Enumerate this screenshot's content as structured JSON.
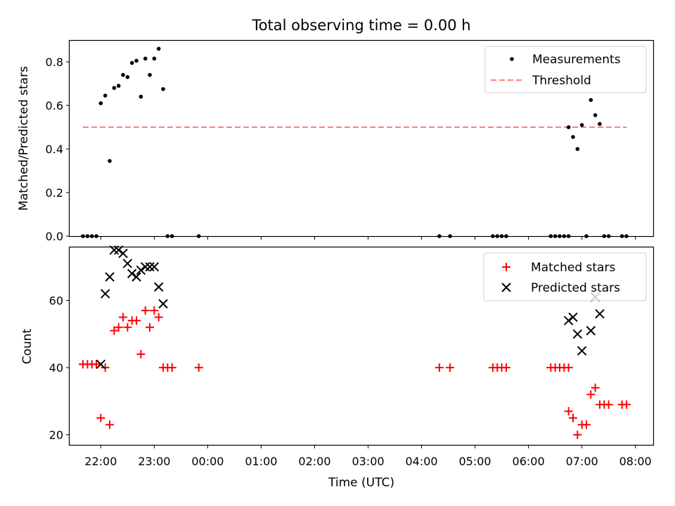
{
  "figure": {
    "title": "Total observing time = 0.00 h",
    "xlabel": "Time (UTC)",
    "x_tick_labels": [
      "22:00",
      "23:00",
      "00:00",
      "01:00",
      "02:00",
      "03:00",
      "04:00",
      "05:00",
      "06:00",
      "07:00",
      "08:00"
    ]
  },
  "colors": {
    "measurements": "#000000",
    "threshold": "#ff8080",
    "matched": "#ff0000",
    "predicted": "#000000"
  },
  "chart_data": [
    {
      "type": "scatter",
      "panel": "top",
      "ylabel": "Matched/Predicted stars",
      "xlim": [
        "21:25",
        "08:20"
      ],
      "ylim": [
        0,
        0.9
      ],
      "y_ticks": [
        0.0,
        0.2,
        0.4,
        0.6,
        0.8
      ],
      "y_tick_labels": [
        "0.0",
        "0.2",
        "0.4",
        "0.6",
        "0.8"
      ],
      "legend_position": "top-right",
      "series": [
        {
          "name": "Measurements",
          "marker": "dot",
          "points": [
            [
              "21:40",
              0
            ],
            [
              "21:45",
              0
            ],
            [
              "21:50",
              0
            ],
            [
              "21:55",
              0
            ],
            [
              "22:00",
              0.61
            ],
            [
              "22:05",
              0.645
            ],
            [
              "22:10",
              0.345
            ],
            [
              "22:15",
              0.68
            ],
            [
              "22:20",
              0.69
            ],
            [
              "22:25",
              0.74
            ],
            [
              "22:30",
              0.73
            ],
            [
              "22:35",
              0.795
            ],
            [
              "22:40",
              0.805
            ],
            [
              "22:45",
              0.64
            ],
            [
              "22:50",
              0.815
            ],
            [
              "22:55",
              0.74
            ],
            [
              "23:00",
              0.815
            ],
            [
              "23:05",
              0.86
            ],
            [
              "23:10",
              0.675
            ],
            [
              "23:15",
              0
            ],
            [
              "23:20",
              0
            ],
            [
              "23:50",
              0
            ],
            [
              "04:20",
              0
            ],
            [
              "04:32",
              0
            ],
            [
              "05:20",
              0
            ],
            [
              "05:25",
              0
            ],
            [
              "05:30",
              0
            ],
            [
              "05:35",
              0
            ],
            [
              "06:25",
              0
            ],
            [
              "06:30",
              0
            ],
            [
              "06:35",
              0
            ],
            [
              "06:40",
              0
            ],
            [
              "06:45",
              0
            ],
            [
              "06:45",
              0.5
            ],
            [
              "06:50",
              0.455
            ],
            [
              "06:55",
              0.4
            ],
            [
              "07:00",
              0.51
            ],
            [
              "07:05",
              0
            ],
            [
              "07:10",
              0.625
            ],
            [
              "07:15",
              0.555
            ],
            [
              "07:20",
              0.515
            ],
            [
              "07:25",
              0
            ],
            [
              "07:30",
              0
            ],
            [
              "07:45",
              0
            ],
            [
              "07:50",
              0
            ]
          ]
        },
        {
          "name": "Threshold",
          "style": "dashed-line",
          "points": [
            [
              "21:40",
              0.5
            ],
            [
              "07:50",
              0.5
            ]
          ]
        }
      ]
    },
    {
      "type": "scatter",
      "panel": "bottom",
      "ylabel": "Count",
      "xlim": [
        "21:25",
        "08:20"
      ],
      "ylim": [
        17,
        76
      ],
      "y_ticks": [
        20,
        40,
        60
      ],
      "y_tick_labels": [
        "20",
        "40",
        "60"
      ],
      "legend_position": "top-right",
      "series": [
        {
          "name": "Matched stars",
          "marker": "plus",
          "points": [
            [
              "21:40",
              41
            ],
            [
              "21:45",
              41
            ],
            [
              "21:50",
              41
            ],
            [
              "21:55",
              41
            ],
            [
              "22:00",
              25
            ],
            [
              "22:05",
              40
            ],
            [
              "22:10",
              23
            ],
            [
              "22:15",
              51
            ],
            [
              "22:20",
              52
            ],
            [
              "22:25",
              55
            ],
            [
              "22:30",
              52
            ],
            [
              "22:35",
              54
            ],
            [
              "22:40",
              54
            ],
            [
              "22:45",
              44
            ],
            [
              "22:50",
              57
            ],
            [
              "22:55",
              52
            ],
            [
              "23:00",
              57
            ],
            [
              "23:05",
              55
            ],
            [
              "23:10",
              40
            ],
            [
              "23:15",
              40
            ],
            [
              "23:20",
              40
            ],
            [
              "23:50",
              40
            ],
            [
              "04:20",
              40
            ],
            [
              "04:32",
              40
            ],
            [
              "05:20",
              40
            ],
            [
              "05:25",
              40
            ],
            [
              "05:30",
              40
            ],
            [
              "05:35",
              40
            ],
            [
              "06:25",
              40
            ],
            [
              "06:30",
              40
            ],
            [
              "06:35",
              40
            ],
            [
              "06:40",
              40
            ],
            [
              "06:45",
              40
            ],
            [
              "06:45",
              27
            ],
            [
              "06:50",
              25
            ],
            [
              "06:55",
              20
            ],
            [
              "07:00",
              23
            ],
            [
              "07:05",
              23
            ],
            [
              "07:10",
              32
            ],
            [
              "07:15",
              34
            ],
            [
              "07:20",
              29
            ],
            [
              "07:25",
              29
            ],
            [
              "07:30",
              29
            ],
            [
              "07:45",
              29
            ],
            [
              "07:50",
              29
            ]
          ]
        },
        {
          "name": "Predicted stars",
          "marker": "x",
          "points": [
            [
              "22:00",
              41
            ],
            [
              "22:05",
              62
            ],
            [
              "22:10",
              67
            ],
            [
              "22:15",
              75
            ],
            [
              "22:20",
              75
            ],
            [
              "22:25",
              74
            ],
            [
              "22:30",
              71
            ],
            [
              "22:35",
              68
            ],
            [
              "22:40",
              67
            ],
            [
              "22:45",
              69
            ],
            [
              "22:50",
              70
            ],
            [
              "22:55",
              70
            ],
            [
              "23:00",
              70
            ],
            [
              "23:05",
              64
            ],
            [
              "23:10",
              59
            ],
            [
              "06:45",
              54
            ],
            [
              "06:50",
              55
            ],
            [
              "06:55",
              50
            ],
            [
              "07:00",
              45
            ],
            [
              "07:10",
              51
            ],
            [
              "07:15",
              61
            ],
            [
              "07:20",
              56
            ]
          ]
        }
      ]
    }
  ]
}
